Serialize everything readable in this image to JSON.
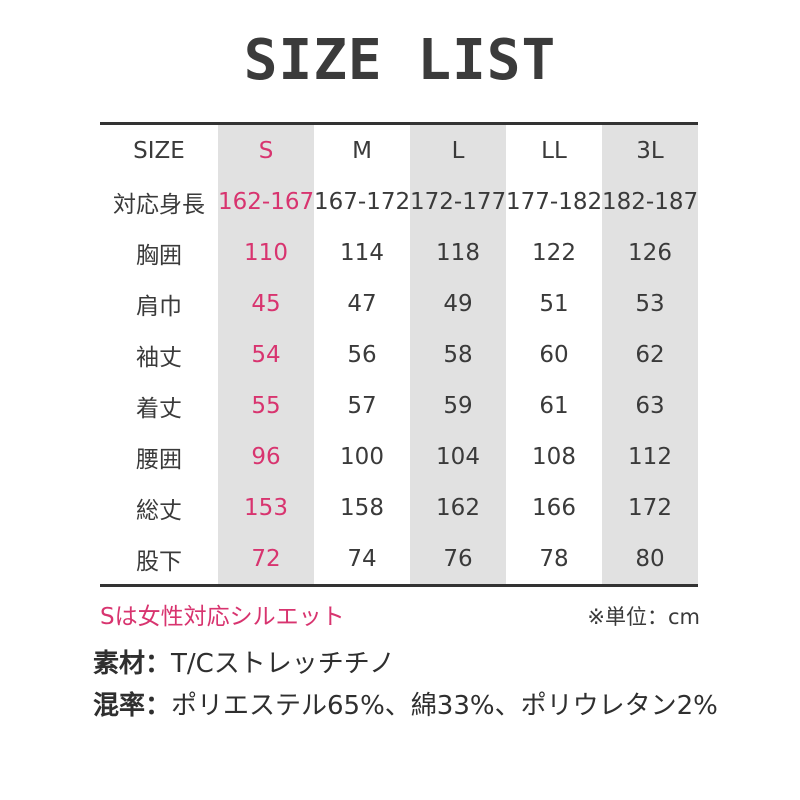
{
  "title": "SIZE LIST",
  "colors": {
    "accent_pink": "#d8346f",
    "shaded_column_bg": "#e1e1e1",
    "text_dark": "#3a3a3a",
    "rule_dark": "#333333"
  },
  "chart_data": {
    "type": "table",
    "title": "SIZE LIST",
    "columns": [
      "SIZE",
      "S",
      "M",
      "L",
      "LL",
      "3L"
    ],
    "rows": [
      [
        "対応身長",
        "162-167",
        "167-172",
        "172-177",
        "177-182",
        "182-187"
      ],
      [
        "胸囲",
        "110",
        "114",
        "118",
        "122",
        "126"
      ],
      [
        "肩巾",
        "45",
        "47",
        "49",
        "51",
        "53"
      ],
      [
        "袖丈",
        "54",
        "56",
        "58",
        "60",
        "62"
      ],
      [
        "着丈",
        "55",
        "57",
        "59",
        "61",
        "63"
      ],
      [
        "腰囲",
        "96",
        "100",
        "104",
        "108",
        "112"
      ],
      [
        "総丈",
        "153",
        "158",
        "162",
        "166",
        "172"
      ],
      [
        "股下",
        "72",
        "74",
        "76",
        "78",
        "80"
      ]
    ],
    "shaded_columns": [
      "S",
      "L",
      "3L"
    ],
    "highlighted_column": "S",
    "unit": "cm"
  },
  "notes": {
    "s_note": "Sは女性対応シルエット",
    "unit_note": "※単位：cm"
  },
  "footer": {
    "material_label": "素材：",
    "material_value": "T/Cストレッチチノ",
    "blend_label": "混率：",
    "blend_value": "ポリエステル65%、綿33%、ポリウレタン2%"
  }
}
